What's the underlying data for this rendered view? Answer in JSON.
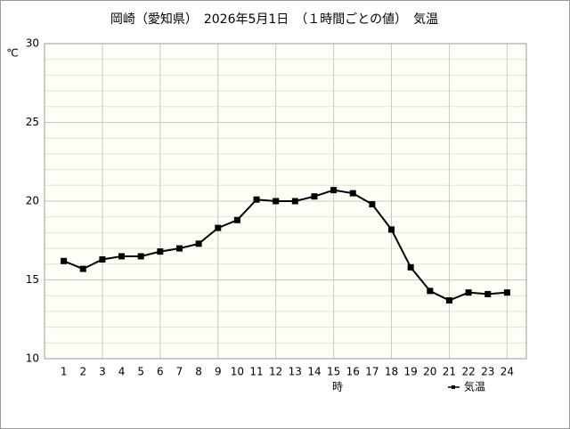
{
  "chart_data": {
    "type": "line",
    "title": "岡崎（愛知県）　2026年5月1日　（１時間ごとの値）　気温",
    "y_unit": "℃",
    "x_label": "時",
    "x": [
      1,
      2,
      3,
      4,
      5,
      6,
      7,
      8,
      9,
      10,
      11,
      12,
      13,
      14,
      15,
      16,
      17,
      18,
      19,
      20,
      21,
      22,
      23,
      24
    ],
    "series": [
      {
        "name": "気温",
        "color": "#000000",
        "values": [
          16.2,
          15.7,
          16.3,
          16.5,
          16.5,
          16.8,
          17.0,
          17.3,
          18.3,
          18.8,
          20.1,
          20.0,
          20.0,
          20.3,
          20.7,
          20.5,
          19.8,
          18.2,
          15.8,
          14.3,
          13.7,
          14.2,
          14.1,
          14.2
        ]
      }
    ],
    "xlim": [
      0,
      25
    ],
    "xticks": [
      1,
      2,
      3,
      4,
      5,
      6,
      7,
      8,
      9,
      10,
      11,
      12,
      13,
      14,
      15,
      16,
      17,
      18,
      19,
      20,
      21,
      22,
      23,
      24
    ],
    "xgrid": [
      3,
      6,
      9,
      12,
      15,
      18,
      21,
      24
    ],
    "ylim": [
      10,
      30
    ],
    "yticks": [
      10,
      15,
      20,
      25,
      30
    ],
    "yminorgrid": [
      11,
      12,
      13,
      14,
      16,
      17,
      18,
      19,
      21,
      22,
      23,
      24,
      26,
      27,
      28,
      29
    ],
    "grid": true,
    "legend": "bottom-right"
  }
}
